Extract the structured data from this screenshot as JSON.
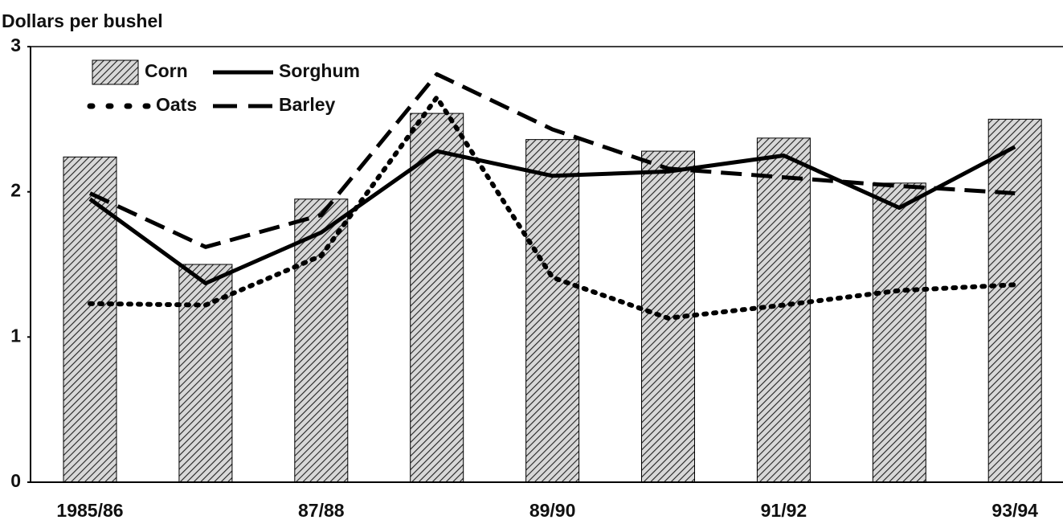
{
  "chart_data": {
    "type": "bar",
    "y_axis_label": "Dollars per bushel",
    "categories": [
      "1985/86",
      null,
      "87/88",
      null,
      "89/90",
      null,
      "91/92",
      null,
      "93/94"
    ],
    "series": [
      {
        "name": "Corn",
        "type": "bar",
        "color": "#000000",
        "pattern": "hatched",
        "values": [
          2.24,
          1.5,
          1.95,
          2.54,
          2.36,
          2.28,
          2.37,
          2.06,
          2.5
        ]
      },
      {
        "name": "Sorghum",
        "type": "line",
        "color": "#000000",
        "style": "solid",
        "values": [
          1.95,
          1.37,
          1.72,
          2.28,
          2.11,
          2.14,
          2.25,
          1.89,
          2.31
        ]
      },
      {
        "name": "Oats",
        "type": "line",
        "color": "#000000",
        "style": "dotted",
        "values": [
          1.23,
          1.22,
          1.56,
          2.65,
          1.41,
          1.13,
          1.22,
          1.32,
          1.36
        ]
      },
      {
        "name": "Barley",
        "type": "line",
        "color": "#000000",
        "style": "dashed",
        "values": [
          1.99,
          1.62,
          1.84,
          2.81,
          2.43,
          2.16,
          2.1,
          2.04,
          1.99
        ]
      }
    ],
    "ylim": [
      0,
      3
    ],
    "yticks": [
      0,
      1,
      2,
      3
    ],
    "grid": false,
    "legend": "upper left"
  }
}
